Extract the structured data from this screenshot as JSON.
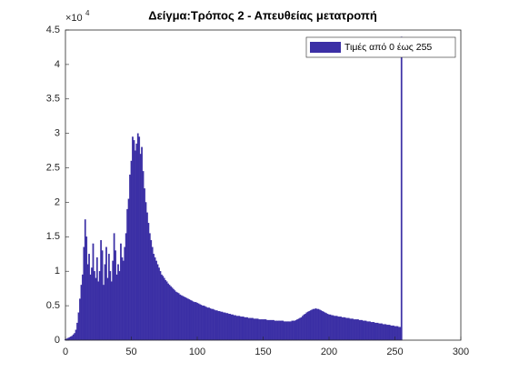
{
  "chart_data": {
    "type": "histogram",
    "title": "Δείγμα:Τρόπος 2 - Απευθείας μετατροπή",
    "y_exponent": {
      "base": "×10",
      "power": "4"
    },
    "x": [
      0,
      1,
      2,
      3,
      4,
      5,
      6,
      7,
      8,
      9,
      10,
      11,
      12,
      13,
      14,
      15,
      16,
      17,
      18,
      19,
      20,
      21,
      22,
      23,
      24,
      25,
      26,
      27,
      28,
      29,
      30,
      31,
      32,
      33,
      34,
      35,
      36,
      37,
      38,
      39,
      40,
      41,
      42,
      43,
      44,
      45,
      46,
      47,
      48,
      49,
      50,
      51,
      52,
      53,
      54,
      55,
      56,
      57,
      58,
      59,
      60,
      61,
      62,
      63,
      64,
      65,
      66,
      67,
      68,
      69,
      70,
      71,
      72,
      73,
      74,
      75,
      76,
      77,
      78,
      79,
      80,
      81,
      82,
      83,
      84,
      85,
      86,
      87,
      88,
      89,
      90,
      91,
      92,
      93,
      94,
      95,
      96,
      97,
      98,
      99,
      100,
      101,
      102,
      103,
      104,
      105,
      106,
      107,
      108,
      109,
      110,
      111,
      112,
      113,
      114,
      115,
      116,
      117,
      118,
      119,
      120,
      121,
      122,
      123,
      124,
      125,
      126,
      127,
      128,
      129,
      130,
      131,
      132,
      133,
      134,
      135,
      136,
      137,
      138,
      139,
      140,
      141,
      142,
      143,
      144,
      145,
      146,
      147,
      148,
      149,
      150,
      151,
      152,
      153,
      154,
      155,
      156,
      157,
      158,
      159,
      160,
      161,
      162,
      163,
      164,
      165,
      166,
      167,
      168,
      169,
      170,
      171,
      172,
      173,
      174,
      175,
      176,
      177,
      178,
      179,
      180,
      181,
      182,
      183,
      184,
      185,
      186,
      187,
      188,
      189,
      190,
      191,
      192,
      193,
      194,
      195,
      196,
      197,
      198,
      199,
      200,
      201,
      202,
      203,
      204,
      205,
      206,
      207,
      208,
      209,
      210,
      211,
      212,
      213,
      214,
      215,
      216,
      217,
      218,
      219,
      220,
      221,
      222,
      223,
      224,
      225,
      226,
      227,
      228,
      229,
      230,
      231,
      232,
      233,
      234,
      235,
      236,
      237,
      238,
      239,
      240,
      241,
      242,
      243,
      244,
      245,
      246,
      247,
      248,
      249,
      250,
      251,
      252,
      253,
      254,
      255
    ],
    "series": [
      {
        "name": "Τιμές από 0 έως 255",
        "color": "#3b2fa5",
        "values": [
          0.01,
          0.02,
          0.03,
          0.04,
          0.05,
          0.06,
          0.08,
          0.1,
          0.15,
          0.25,
          0.4,
          0.6,
          0.8,
          0.95,
          1.35,
          1.75,
          1.5,
          1.1,
          1.25,
          0.95,
          1.05,
          1.4,
          1.0,
          0.9,
          1.2,
          0.85,
          1.0,
          1.45,
          1.3,
          0.8,
          1.1,
          1.35,
          0.9,
          1.25,
          1.0,
          0.85,
          1.15,
          1.55,
          1.3,
          0.95,
          1.1,
          1.0,
          1.4,
          1.2,
          1.15,
          1.35,
          1.55,
          1.9,
          2.05,
          2.4,
          2.6,
          2.95,
          2.9,
          2.75,
          2.85,
          3.0,
          2.95,
          2.7,
          2.8,
          2.45,
          2.2,
          2.0,
          1.85,
          1.7,
          1.55,
          1.45,
          1.35,
          1.25,
          1.2,
          1.15,
          1.1,
          1.05,
          1.0,
          0.95,
          0.93,
          0.9,
          0.87,
          0.85,
          0.82,
          0.8,
          0.78,
          0.76,
          0.74,
          0.72,
          0.7,
          0.69,
          0.68,
          0.66,
          0.65,
          0.64,
          0.63,
          0.62,
          0.61,
          0.6,
          0.59,
          0.58,
          0.57,
          0.56,
          0.55,
          0.55,
          0.54,
          0.53,
          0.52,
          0.51,
          0.5,
          0.5,
          0.49,
          0.48,
          0.47,
          0.47,
          0.46,
          0.45,
          0.45,
          0.44,
          0.43,
          0.43,
          0.42,
          0.42,
          0.41,
          0.41,
          0.4,
          0.4,
          0.39,
          0.39,
          0.38,
          0.38,
          0.37,
          0.37,
          0.36,
          0.36,
          0.35,
          0.35,
          0.35,
          0.34,
          0.34,
          0.34,
          0.33,
          0.33,
          0.33,
          0.32,
          0.32,
          0.32,
          0.32,
          0.31,
          0.31,
          0.31,
          0.31,
          0.3,
          0.3,
          0.3,
          0.3,
          0.3,
          0.3,
          0.29,
          0.29,
          0.29,
          0.29,
          0.29,
          0.29,
          0.28,
          0.28,
          0.28,
          0.28,
          0.28,
          0.28,
          0.28,
          0.27,
          0.27,
          0.27,
          0.27,
          0.27,
          0.27,
          0.28,
          0.28,
          0.28,
          0.29,
          0.3,
          0.31,
          0.32,
          0.33,
          0.35,
          0.37,
          0.38,
          0.4,
          0.41,
          0.42,
          0.43,
          0.44,
          0.45,
          0.45,
          0.46,
          0.45,
          0.45,
          0.44,
          0.43,
          0.42,
          0.41,
          0.4,
          0.39,
          0.38,
          0.37,
          0.37,
          0.36,
          0.36,
          0.35,
          0.35,
          0.35,
          0.34,
          0.34,
          0.34,
          0.33,
          0.33,
          0.33,
          0.32,
          0.32,
          0.32,
          0.31,
          0.31,
          0.31,
          0.3,
          0.3,
          0.3,
          0.3,
          0.29,
          0.29,
          0.29,
          0.28,
          0.28,
          0.28,
          0.27,
          0.27,
          0.27,
          0.26,
          0.26,
          0.26,
          0.25,
          0.25,
          0.25,
          0.24,
          0.24,
          0.24,
          0.23,
          0.23,
          0.23,
          0.22,
          0.22,
          0.22,
          0.21,
          0.21,
          0.21,
          0.2,
          0.2,
          0.2,
          0.19,
          0.19,
          4.4
        ]
      }
    ],
    "xlim": [
      0,
      300
    ],
    "xticks": [
      0,
      50,
      100,
      150,
      200,
      250,
      300
    ],
    "ylim": [
      0,
      4.5
    ],
    "yticks": [
      0,
      0.5,
      1,
      1.5,
      2,
      2.5,
      3,
      3.5,
      4,
      4.5
    ],
    "legend": "northeast"
  }
}
